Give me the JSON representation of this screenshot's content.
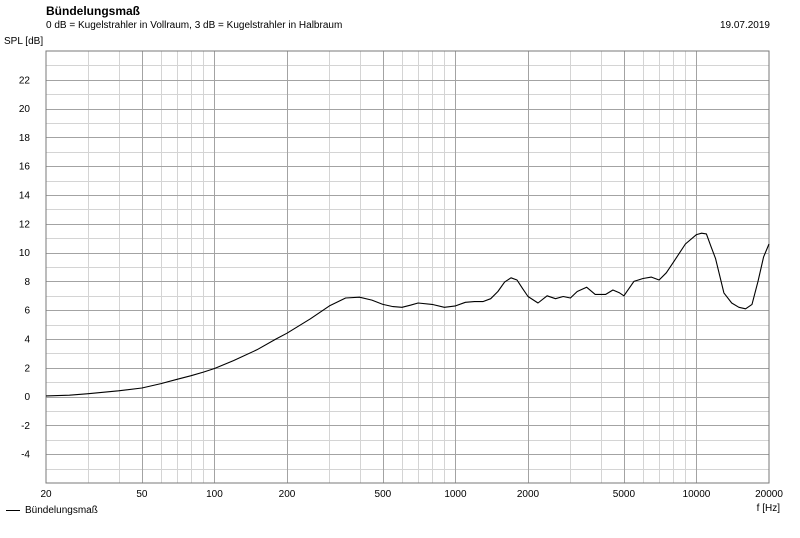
{
  "header": {
    "title": "Bündelungsmaß",
    "subtitle": "0 dB = Kugelstrahler in Vollraum, 3 dB = Kugelstrahler in Halbraum",
    "date": "19.07.2019"
  },
  "colors": {
    "grid_minor": "#d4d4d4",
    "grid_major": "#a3a3a3",
    "curve": "#000000"
  },
  "chart_data": {
    "type": "line",
    "title": "Bündelungsmaß",
    "subtitle": "0 dB = Kugelstrahler in Vollraum, 3 dB = Kugelstrahler in Halbraum",
    "xlabel": "f [Hz]",
    "ylabel": "SPL [dB]",
    "xscale": "log",
    "xlim": [
      20,
      20000
    ],
    "ylim": [
      -6,
      24
    ],
    "xticks": [
      20,
      50,
      100,
      200,
      500,
      1000,
      2000,
      5000,
      10000,
      20000
    ],
    "yticks": [
      -4,
      -2,
      0,
      2,
      4,
      6,
      8,
      10,
      12,
      14,
      16,
      18,
      20,
      22
    ],
    "grid": true,
    "legend_position": "bottom-left",
    "series": [
      {
        "name": "Bündelungsmaß",
        "x": [
          20,
          25,
          30,
          40,
          50,
          60,
          70,
          80,
          90,
          100,
          120,
          150,
          180,
          200,
          250,
          300,
          350,
          400,
          450,
          500,
          550,
          600,
          650,
          700,
          800,
          900,
          1000,
          1100,
          1200,
          1300,
          1400,
          1500,
          1600,
          1700,
          1800,
          1900,
          2000,
          2200,
          2400,
          2600,
          2800,
          3000,
          3200,
          3500,
          3800,
          4000,
          4200,
          4500,
          4800,
          5000,
          5500,
          6000,
          6500,
          7000,
          7500,
          8000,
          9000,
          10000,
          10500,
          11000,
          11500,
          12000,
          13000,
          14000,
          15000,
          16000,
          17000,
          18000,
          19000,
          20000
        ],
        "y": [
          0.05,
          0.1,
          0.2,
          0.4,
          0.6,
          0.9,
          1.2,
          1.45,
          1.7,
          1.95,
          2.5,
          3.25,
          4.0,
          4.4,
          5.4,
          6.3,
          6.85,
          6.9,
          6.7,
          6.4,
          6.25,
          6.2,
          6.35,
          6.5,
          6.4,
          6.2,
          6.3,
          6.55,
          6.6,
          6.6,
          6.8,
          7.3,
          7.95,
          8.25,
          8.1,
          7.5,
          6.95,
          6.5,
          7.0,
          6.8,
          6.95,
          6.85,
          7.3,
          7.6,
          7.1,
          7.1,
          7.1,
          7.4,
          7.2,
          7.0,
          8.0,
          8.2,
          8.3,
          8.1,
          8.6,
          9.3,
          10.6,
          11.25,
          11.35,
          11.3,
          10.4,
          9.6,
          7.2,
          6.5,
          6.2,
          6.1,
          6.4,
          8.0,
          9.7,
          10.6
        ]
      }
    ]
  }
}
